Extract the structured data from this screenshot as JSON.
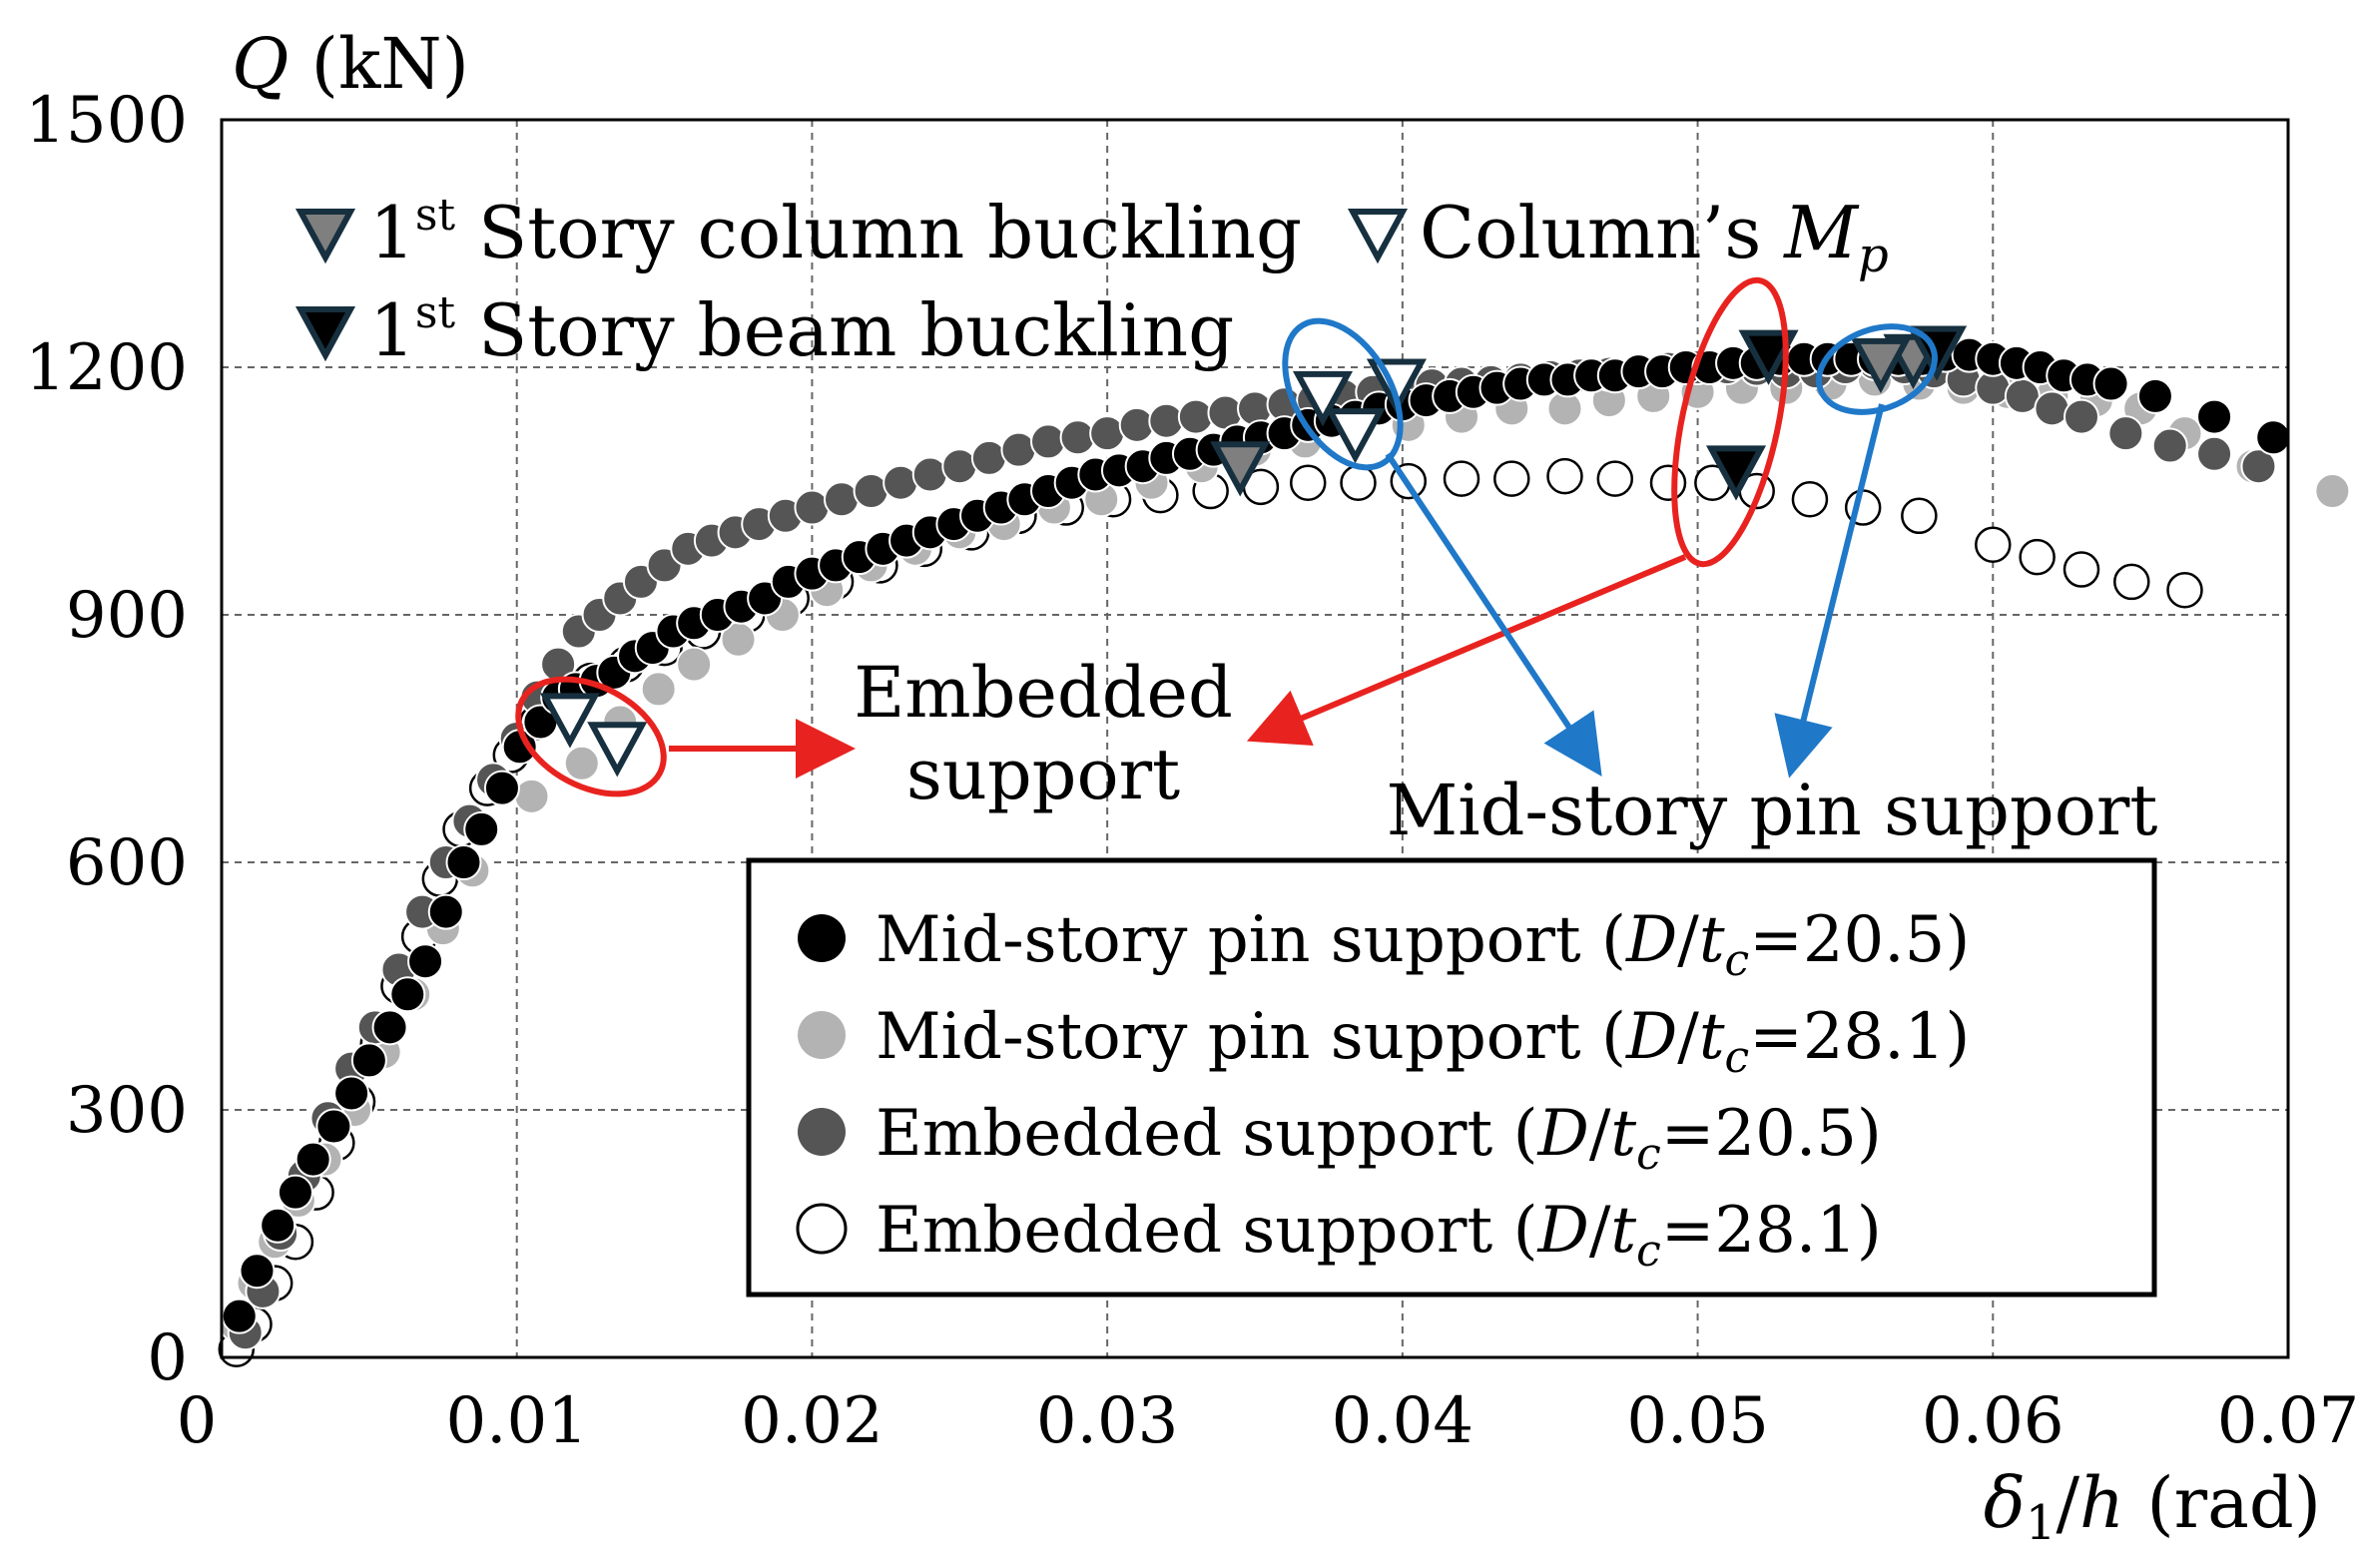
{
  "chart_data": {
    "type": "scatter",
    "ylabel_parts": {
      "var": "Q",
      "unit": " (kN)"
    },
    "xlabel_parts": {
      "var": "δ",
      "sub": "1",
      "rest": "/",
      "var2": "h",
      "unit": " (rad)"
    },
    "xlim": [
      0,
      0.07
    ],
    "ylim": [
      0,
      1500
    ],
    "x_ticks": [
      0,
      0.01,
      0.02,
      0.03,
      0.04,
      0.05,
      0.06,
      0.07
    ],
    "x_tick_labels": [
      "0",
      "0.01",
      "0.02",
      "0.03",
      "0.04",
      "0.05",
      "0.06",
      "0.07"
    ],
    "y_ticks": [
      0,
      300,
      600,
      900,
      1200,
      1500
    ],
    "y_tick_labels": [
      "0",
      "300",
      "600",
      "900",
      "1200",
      "1500"
    ],
    "grid": true,
    "legend_placement": "lower-right",
    "colors": {
      "series_1": "#000000",
      "series_2": "#b3b3b3",
      "series_3": "#555555",
      "series_4": "#ffffff",
      "marker_outline": "#17303f",
      "red_annotation": "#e8231f",
      "blue_annotation": "#1f78c8",
      "column_buckling_fill": "#7f7f7f",
      "beam_buckling_fill": "#000000"
    },
    "series": [
      {
        "name_parts": {
          "prefix": "Mid-story pin support (",
          "var1": "D",
          "slash": "/",
          "var2": "t",
          "sub": "c",
          "suffix": "=20.5)"
        },
        "marker": "filled-circle",
        "x": [
          0.0006,
          0.0012,
          0.0019,
          0.0025,
          0.0031,
          0.0038,
          0.0044,
          0.005,
          0.0057,
          0.0063,
          0.0069,
          0.0076,
          0.0082,
          0.0088,
          0.0095,
          0.0101,
          0.0108,
          0.0114,
          0.012,
          0.0127,
          0.0133,
          0.014,
          0.0146,
          0.0153,
          0.016,
          0.0168,
          0.0176,
          0.0184,
          0.0192,
          0.02,
          0.0208,
          0.0216,
          0.0224,
          0.0232,
          0.024,
          0.0248,
          0.0256,
          0.0264,
          0.0272,
          0.028,
          0.0288,
          0.0296,
          0.0304,
          0.0312,
          0.032,
          0.0328,
          0.0336,
          0.0344,
          0.0352,
          0.036,
          0.0368,
          0.0376,
          0.0384,
          0.0392,
          0.04,
          0.0408,
          0.0416,
          0.0424,
          0.0432,
          0.044,
          0.0448,
          0.0456,
          0.0464,
          0.0472,
          0.048,
          0.0488,
          0.0496,
          0.0504,
          0.0512,
          0.052,
          0.0528,
          0.0536,
          0.0544,
          0.0552,
          0.056,
          0.0568,
          0.0576,
          0.0584,
          0.0592,
          0.06,
          0.0608,
          0.0616,
          0.0624,
          0.0632,
          0.064,
          0.0655,
          0.0675,
          0.0695
        ],
        "y": [
          50,
          105,
          160,
          200,
          240,
          280,
          320,
          360,
          400,
          440,
          480,
          540,
          600,
          640,
          690,
          740,
          770,
          800,
          810,
          820,
          830,
          850,
          860,
          880,
          890,
          900,
          910,
          920,
          940,
          950,
          960,
          970,
          980,
          990,
          1000,
          1010,
          1020,
          1030,
          1040,
          1050,
          1060,
          1070,
          1075,
          1080,
          1090,
          1095,
          1100,
          1110,
          1115,
          1120,
          1130,
          1135,
          1140,
          1150,
          1155,
          1160,
          1165,
          1170,
          1175,
          1180,
          1185,
          1185,
          1190,
          1190,
          1195,
          1195,
          1200,
          1200,
          1205,
          1205,
          1210,
          1210,
          1210,
          1210,
          1210,
          1210,
          1210,
          1215,
          1215,
          1210,
          1205,
          1200,
          1190,
          1185,
          1180,
          1165,
          1140,
          1115
        ]
      },
      {
        "name_parts": {
          "prefix": "Mid-story pin support (",
          "var1": "D",
          "slash": "/",
          "var2": "t",
          "sub": "c",
          "suffix": "=28.1)"
        },
        "marker": "filled-circle",
        "x": [
          0.0005,
          0.0011,
          0.0018,
          0.0026,
          0.0035,
          0.0045,
          0.0055,
          0.0065,
          0.0075,
          0.0085,
          0.0105,
          0.0122,
          0.0135,
          0.0148,
          0.016,
          0.0175,
          0.019,
          0.0205,
          0.022,
          0.0235,
          0.025,
          0.0265,
          0.0282,
          0.0298,
          0.0315,
          0.0332,
          0.035,
          0.0367,
          0.0385,
          0.0402,
          0.042,
          0.0437,
          0.0455,
          0.047,
          0.0485,
          0.05,
          0.0515,
          0.053,
          0.0545,
          0.056,
          0.0575,
          0.059,
          0.0605,
          0.062,
          0.0635,
          0.065,
          0.0665,
          0.0688,
          0.0715
        ],
        "y": [
          40,
          90,
          140,
          190,
          240,
          300,
          370,
          440,
          520,
          590,
          680,
          720,
          770,
          810,
          840,
          870,
          900,
          930,
          960,
          980,
          1000,
          1010,
          1030,
          1040,
          1060,
          1080,
          1100,
          1110,
          1130,
          1130,
          1140,
          1150,
          1150,
          1160,
          1165,
          1170,
          1175,
          1175,
          1180,
          1185,
          1180,
          1175,
          1170,
          1165,
          1160,
          1150,
          1120,
          1080,
          1050
        ]
      },
      {
        "name_parts": {
          "prefix": "Embedded support (",
          "var1": "D",
          "slash": "/",
          "var2": "t",
          "sub": "c",
          "suffix": "=20.5)"
        },
        "marker": "filled-circle",
        "x": [
          0.0008,
          0.0014,
          0.002,
          0.0028,
          0.0036,
          0.0044,
          0.0052,
          0.006,
          0.0068,
          0.0076,
          0.0084,
          0.0092,
          0.01,
          0.0107,
          0.0114,
          0.0121,
          0.0128,
          0.0135,
          0.0142,
          0.015,
          0.0158,
          0.0166,
          0.0174,
          0.0182,
          0.0191,
          0.02,
          0.021,
          0.022,
          0.023,
          0.024,
          0.025,
          0.026,
          0.027,
          0.028,
          0.029,
          0.03,
          0.031,
          0.032,
          0.033,
          0.034,
          0.035,
          0.036,
          0.037,
          0.038,
          0.039,
          0.04,
          0.041,
          0.042,
          0.043,
          0.044,
          0.045,
          0.046,
          0.047,
          0.048,
          0.049,
          0.05,
          0.051,
          0.052,
          0.053,
          0.054,
          0.055,
          0.056,
          0.057,
          0.058,
          0.059,
          0.06,
          0.061,
          0.062,
          0.063,
          0.0645,
          0.066,
          0.0675,
          0.069
        ],
        "y": [
          30,
          80,
          150,
          220,
          290,
          350,
          400,
          470,
          540,
          600,
          650,
          700,
          750,
          800,
          840,
          880,
          900,
          920,
          940,
          960,
          980,
          990,
          1000,
          1010,
          1020,
          1030,
          1040,
          1050,
          1060,
          1070,
          1080,
          1090,
          1100,
          1110,
          1115,
          1120,
          1130,
          1135,
          1140,
          1145,
          1150,
          1155,
          1160,
          1165,
          1170,
          1175,
          1178,
          1180,
          1182,
          1185,
          1188,
          1190,
          1192,
          1195,
          1198,
          1200,
          1200,
          1198,
          1195,
          1195,
          1200,
          1205,
          1200,
          1195,
          1185,
          1175,
          1165,
          1150,
          1140,
          1120,
          1105,
          1095,
          1080
        ]
      },
      {
        "name_parts": {
          "prefix": "Embedded support (",
          "var1": "D",
          "slash": "/",
          "var2": "t",
          "sub": "c",
          "suffix": "=28.1)"
        },
        "marker": "open-circle",
        "x": [
          0.0005,
          0.0011,
          0.0018,
          0.0025,
          0.0032,
          0.0039,
          0.0046,
          0.0053,
          0.006,
          0.0067,
          0.0074,
          0.0081,
          0.009,
          0.0098,
          0.0107,
          0.0115,
          0.0125,
          0.0137,
          0.015,
          0.0163,
          0.0178,
          0.0193,
          0.0208,
          0.0223,
          0.0238,
          0.0254,
          0.027,
          0.0286,
          0.0302,
          0.0318,
          0.0335,
          0.0352,
          0.0368,
          0.0385,
          0.0402,
          0.042,
          0.0437,
          0.0455,
          0.0472,
          0.049,
          0.0505,
          0.052,
          0.0538,
          0.0556,
          0.0575,
          0.06,
          0.0615,
          0.063,
          0.0647,
          0.0665
        ],
        "y": [
          10,
          40,
          90,
          140,
          200,
          260,
          310,
          380,
          450,
          510,
          580,
          640,
          690,
          730,
          770,
          800,
          820,
          840,
          860,
          880,
          900,
          920,
          940,
          960,
          980,
          1000,
          1020,
          1030,
          1040,
          1045,
          1050,
          1055,
          1060,
          1060,
          1062,
          1065,
          1065,
          1068,
          1065,
          1060,
          1060,
          1050,
          1040,
          1030,
          1020,
          985,
          970,
          955,
          940,
          930
        ]
      }
    ],
    "legend_entries": [
      {
        "text": "1st Story column buckling",
        "sup": "st",
        "main": "1",
        "rest": " Story column buckling",
        "marker": "gray-down-triangle"
      },
      {
        "text": "1st Story beam buckling",
        "sup": "st",
        "main": "1",
        "rest": " Story beam buckling",
        "marker": "black-down-triangle"
      },
      {
        "text": "Column's Mp",
        "main": "Column’s ",
        "var": "M",
        "sub": "p",
        "marker": "open-down-triangle"
      }
    ],
    "event_markers": [
      {
        "type": "column-buckling",
        "x": 0.0345,
        "y": 1080
      },
      {
        "type": "column-buckling",
        "x": 0.0573,
        "y": 1210
      },
      {
        "type": "column-buckling",
        "x": 0.0562,
        "y": 1205
      },
      {
        "type": "beam-buckling",
        "x": 0.0524,
        "y": 1215
      },
      {
        "type": "beam-buckling",
        "x": 0.0513,
        "y": 1075
      },
      {
        "type": "beam-buckling",
        "x": 0.0581,
        "y": 1220
      },
      {
        "type": "Mp",
        "x": 0.0118,
        "y": 775
      },
      {
        "type": "Mp",
        "x": 0.0134,
        "y": 740
      },
      {
        "type": "Mp",
        "x": 0.0373,
        "y": 1165
      },
      {
        "type": "Mp",
        "x": 0.0384,
        "y": 1120
      },
      {
        "type": "Mp",
        "x": 0.0398,
        "y": 1180
      }
    ],
    "annotations": {
      "embedded_label_line1": "Embedded",
      "embedded_label_line2": "support",
      "pin_label": "Mid-story pin support"
    }
  }
}
